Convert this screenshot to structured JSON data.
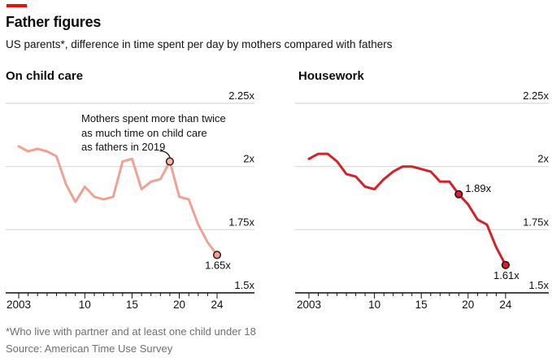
{
  "header": {
    "title": "Father figures",
    "subtitle": "US parents*, difference in time spent per day by mothers compared with fathers"
  },
  "accent_color": "#e3120b",
  "panels": [
    {
      "heading": "On child care",
      "series_name": "childcare",
      "line_color": "#f0a195",
      "marker_open_fill": "#f6bdae",
      "marker_stroke": "#43211a",
      "annotation": {
        "lines": [
          "Mothers spent more than twice",
          "as much time on child care",
          "as fathers in 2019"
        ]
      },
      "markers": [
        {
          "year": 2019,
          "value": 2.02,
          "style": "open",
          "label": ""
        },
        {
          "year": 2024,
          "value": 1.65,
          "style": "filled",
          "label": "1.65x",
          "label_pos": "below"
        }
      ]
    },
    {
      "heading": "Housework",
      "series_name": "housework",
      "line_color": "#d2232a",
      "marker_open_fill": "#d2232a",
      "marker_stroke": "#2e0a0a",
      "markers": [
        {
          "year": 2019,
          "value": 1.89,
          "style": "filled",
          "label": "1.89x",
          "label_pos": "right"
        },
        {
          "year": 2024,
          "value": 1.61,
          "style": "filled",
          "label": "1.61x",
          "label_pos": "below"
        }
      ]
    }
  ],
  "chart_data": [
    {
      "type": "line",
      "title": "On child care",
      "x": [
        2003,
        2004,
        2005,
        2006,
        2007,
        2008,
        2009,
        2010,
        2011,
        2012,
        2013,
        2014,
        2015,
        2016,
        2017,
        2018,
        2019,
        2020,
        2021,
        2022,
        2023,
        2024
      ],
      "values": [
        2.08,
        2.06,
        2.07,
        2.06,
        2.04,
        1.93,
        1.86,
        1.92,
        1.88,
        1.87,
        1.88,
        2.02,
        2.03,
        1.91,
        1.94,
        1.95,
        2.02,
        1.88,
        1.87,
        1.77,
        1.7,
        1.65
      ],
      "ylim": [
        1.5,
        2.25
      ],
      "grid": "horizontal",
      "y_tick_side": "right",
      "y_ticks": [
        {
          "value": 2.25,
          "label": "2.25x"
        },
        {
          "value": 2.0,
          "label": "2x"
        },
        {
          "value": 1.75,
          "label": "1.75x"
        },
        {
          "value": 1.5,
          "label": "1.5x"
        }
      ],
      "x_ticks": [
        {
          "year": 2003,
          "label": "2003"
        },
        {
          "year": 2010,
          "label": "10"
        },
        {
          "year": 2015,
          "label": "15"
        },
        {
          "year": 2020,
          "label": "20"
        },
        {
          "year": 2024,
          "label": "24"
        }
      ]
    },
    {
      "type": "line",
      "title": "Housework",
      "x": [
        2003,
        2004,
        2005,
        2006,
        2007,
        2008,
        2009,
        2010,
        2011,
        2012,
        2013,
        2014,
        2015,
        2016,
        2017,
        2018,
        2019,
        2020,
        2021,
        2022,
        2023,
        2024
      ],
      "values": [
        2.03,
        2.05,
        2.05,
        2.02,
        1.97,
        1.96,
        1.92,
        1.91,
        1.95,
        1.98,
        2.0,
        2.0,
        1.99,
        1.98,
        1.94,
        1.94,
        1.89,
        1.85,
        1.79,
        1.77,
        1.68,
        1.61
      ],
      "ylim": [
        1.5,
        2.25
      ],
      "grid": "horizontal",
      "y_tick_side": "right",
      "y_ticks": [
        {
          "value": 2.25,
          "label": "2.25x"
        },
        {
          "value": 2.0,
          "label": "2x"
        },
        {
          "value": 1.75,
          "label": "1.75x"
        },
        {
          "value": 1.5,
          "label": "1.5x"
        }
      ],
      "x_ticks": [
        {
          "year": 2003,
          "label": "2003"
        },
        {
          "year": 2010,
          "label": "10"
        },
        {
          "year": 2015,
          "label": "15"
        },
        {
          "year": 2020,
          "label": "20"
        },
        {
          "year": 2024,
          "label": "24"
        }
      ]
    }
  ],
  "footer": {
    "footnote": "*Who live with partner and at least one child under 18",
    "source": "Source: American Time Use Survey"
  }
}
